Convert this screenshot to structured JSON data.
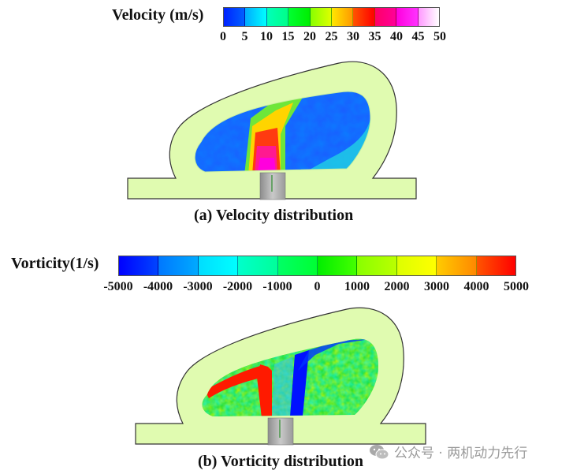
{
  "figure_a": {
    "colorbar": {
      "title": "Velocity (m/s)",
      "ticks": [
        "0",
        "5",
        "10",
        "15",
        "20",
        "25",
        "30",
        "35",
        "40",
        "45",
        "50"
      ],
      "range": [
        0,
        50
      ],
      "segment_colors": [
        [
          "#0022ff",
          "#0060ff"
        ],
        [
          "#00aaff",
          "#00ffff"
        ],
        [
          "#00ffbb",
          "#00ff88"
        ],
        [
          "#00ff33",
          "#00ee00"
        ],
        [
          "#88ff00",
          "#ddff00"
        ],
        [
          "#ffe800",
          "#ff9900"
        ],
        [
          "#ff5500",
          "#ff0000"
        ],
        [
          "#ff0066",
          "#ff0099"
        ],
        [
          "#ff00dd",
          "#ff33ff"
        ],
        [
          "#ff99ff",
          "#ffffff"
        ]
      ]
    },
    "caption": "(a) Velocity distribution"
  },
  "figure_b": {
    "colorbar": {
      "title": "Vorticity(1/s)",
      "ticks": [
        "-5000",
        "-4000",
        "-3000",
        "-2000",
        "-1000",
        "0",
        "1000",
        "2000",
        "3000",
        "4000",
        "5000"
      ],
      "range": [
        -5000,
        5000
      ],
      "segment_colors": [
        [
          "#0000ff",
          "#0044ff"
        ],
        [
          "#0077ff",
          "#00aaff"
        ],
        [
          "#00ddff",
          "#00ffff"
        ],
        [
          "#00ffcc",
          "#00ff99"
        ],
        [
          "#00ff66",
          "#00ff33"
        ],
        [
          "#00ee00",
          "#44ff00"
        ],
        [
          "#88ff00",
          "#bbff00"
        ],
        [
          "#ddff00",
          "#ffff00"
        ],
        [
          "#ffcc00",
          "#ff8800"
        ],
        [
          "#ff5500",
          "#ff0000"
        ]
      ]
    },
    "caption": "(b) Vorticity distribution"
  },
  "colors": {
    "solid_region": "#e0fbb0",
    "outline": "#333333",
    "nozzle": "#a9a9a9"
  },
  "watermark": {
    "icon": "wechat-icon",
    "text": "公众号 · 两机动力先行"
  }
}
